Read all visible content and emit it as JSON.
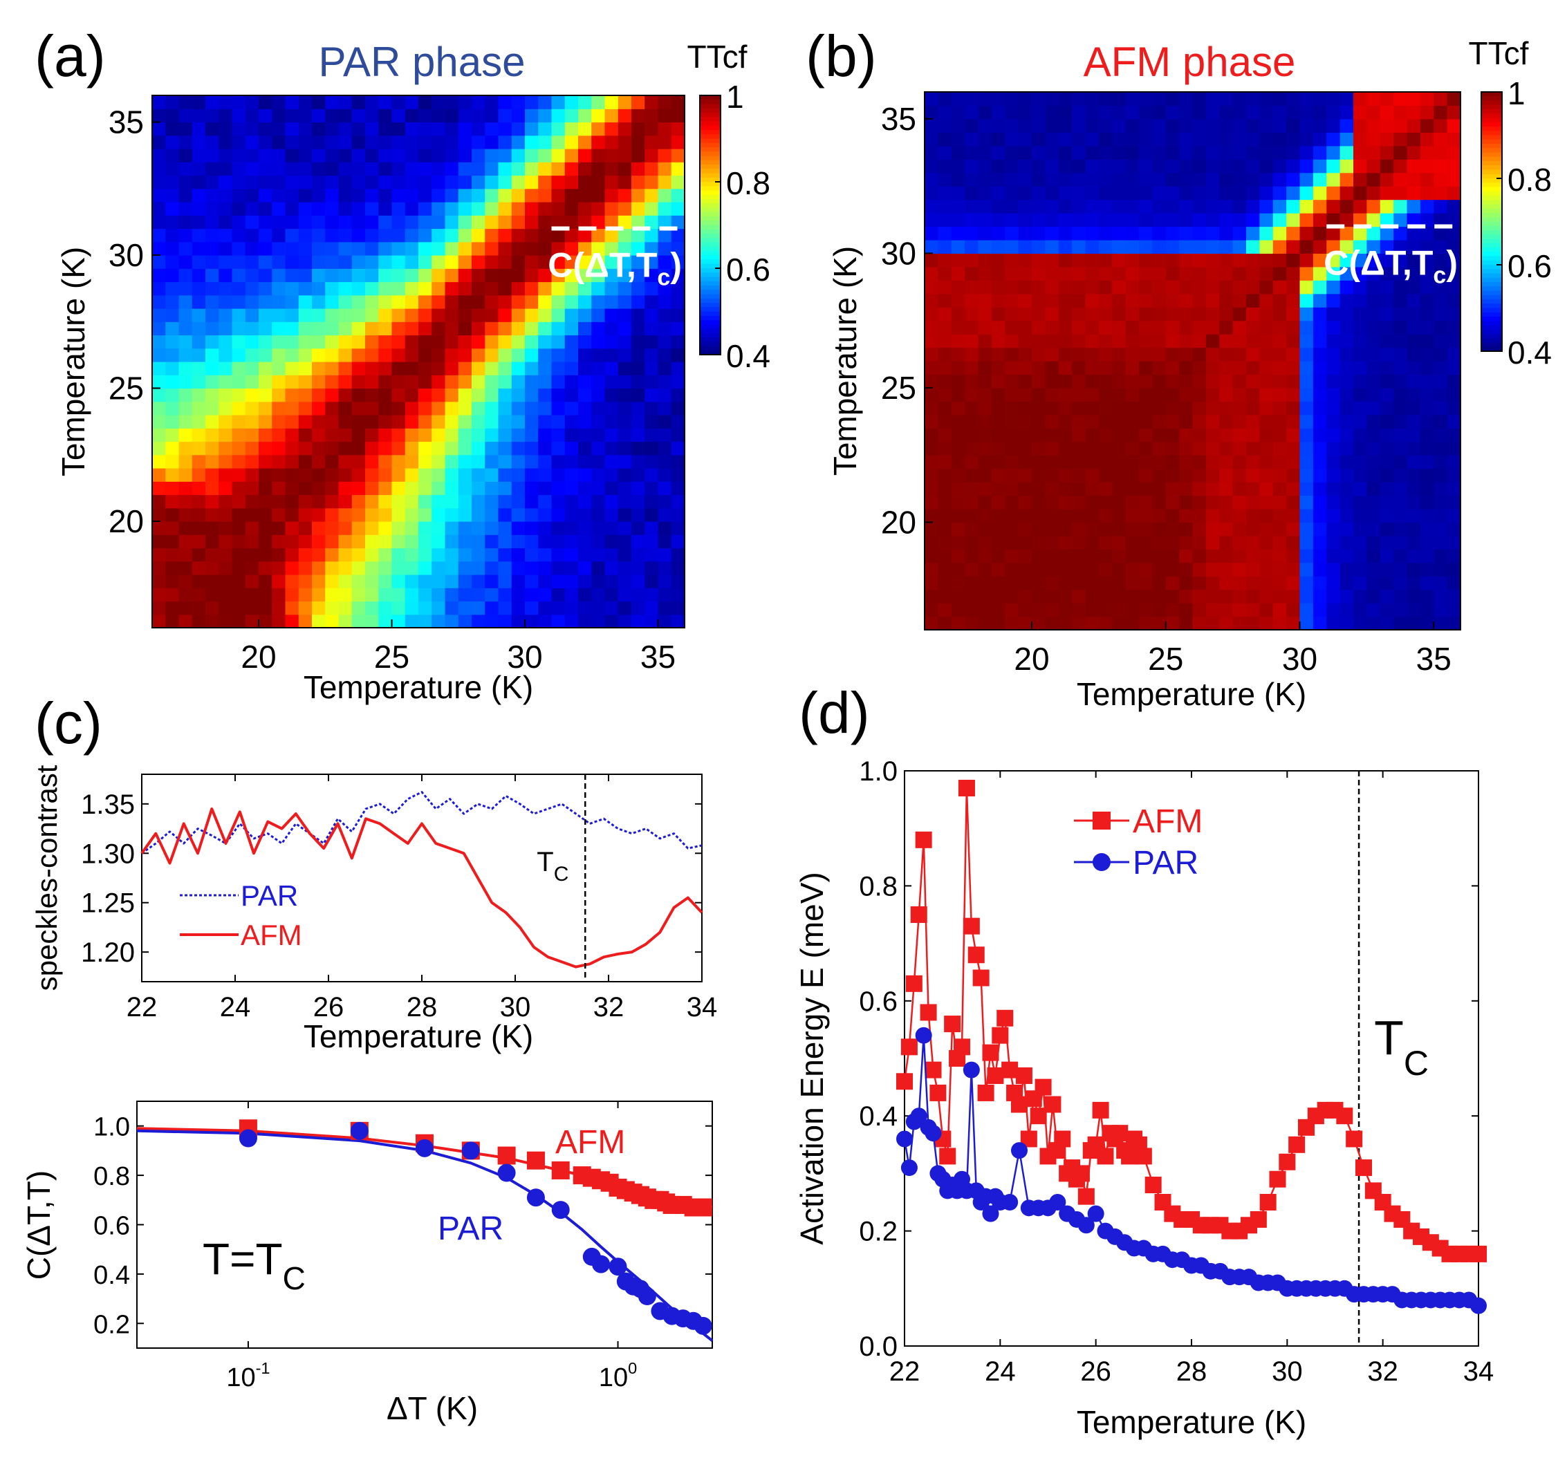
{
  "figure": {
    "colors": {
      "axis": "#000000",
      "afm": "#ee1c1c",
      "par": "#1c1cd6",
      "par_title": "#2e4c9b",
      "afm_title": "#ee1c1c",
      "white": "#ffffff"
    }
  },
  "chart_data": [
    {
      "id": "panel_a",
      "type": "heatmap",
      "panel_label": "(a)",
      "title": "PAR phase",
      "xlabel": "Temperature (K)",
      "ylabel": "Temperature (K)",
      "xlim": [
        16,
        36
      ],
      "ylim": [
        16,
        36
      ],
      "xticks": [
        20,
        25,
        30,
        35
      ],
      "yticks": [
        20,
        25,
        30,
        35
      ],
      "colorbar": {
        "title": "TTcf",
        "range": [
          0.4,
          1
        ],
        "ticks": [
          "0.4",
          "0.6",
          "0.8",
          "1"
        ]
      },
      "annotation": {
        "label": "C(ΔT,T",
        "subscript": "c",
        "closing": ")",
        "line_x": [
          31,
          36
        ],
        "line_y": 31
      },
      "model": {
        "diag_width": 2.6,
        "low_t": 21,
        "low_t_spread": 4.5,
        "floor": 0.43,
        "noise": 0.05
      }
    },
    {
      "id": "panel_b",
      "type": "heatmap",
      "panel_label": "(b)",
      "title": "AFM phase",
      "xlabel": "Temperature (K)",
      "ylabel": "Temperature (K)",
      "xlim": [
        16,
        36
      ],
      "ylim": [
        16,
        36
      ],
      "xticks": [
        20,
        25,
        30,
        35
      ],
      "yticks": [
        20,
        25,
        30,
        35
      ],
      "colorbar": {
        "title": "TTcf",
        "range": [
          0.4,
          1
        ],
        "ticks": [
          "0.4",
          "0.6",
          "0.8",
          "1"
        ]
      },
      "annotation": {
        "label": "C(ΔT,T",
        "subscript": "c",
        "closing": ")",
        "line_x": [
          31,
          36
        ],
        "line_y": 31
      },
      "model": {
        "tc": 31.5,
        "floor": 0.42,
        "noise": 0.02
      }
    },
    {
      "id": "panel_c_top",
      "type": "line",
      "panel_label": "(c)",
      "xlabel": "Temperature (K)",
      "ylabel": "speckles-contrast",
      "xlim": [
        22,
        34
      ],
      "ylim": [
        1.17,
        1.38
      ],
      "xticks": [
        22,
        24,
        26,
        28,
        30,
        32,
        34
      ],
      "yticks": [
        1.2,
        1.25,
        1.3,
        1.35
      ],
      "ytick_labels": [
        "1.20",
        "1.25",
        "1.30",
        "1.35"
      ],
      "vline": {
        "x": 31.5,
        "label": "T",
        "subscript": "C"
      },
      "legend": [
        "PAR",
        "AFM"
      ],
      "series": [
        {
          "name": "PAR",
          "style": "dotted",
          "x": [
            22.0,
            22.3,
            22.6,
            22.9,
            23.2,
            23.5,
            23.8,
            24.1,
            24.4,
            24.7,
            25.0,
            25.3,
            25.6,
            25.9,
            26.2,
            26.5,
            26.8,
            27.1,
            27.4,
            27.7,
            28.0,
            28.3,
            28.6,
            28.9,
            29.2,
            29.5,
            29.8,
            30.1,
            30.4,
            30.7,
            31.0,
            31.3,
            31.6,
            31.9,
            32.2,
            32.5,
            32.8,
            33.1,
            33.4,
            33.7,
            34.0
          ],
          "y": [
            1.3,
            1.31,
            1.322,
            1.31,
            1.325,
            1.318,
            1.31,
            1.33,
            1.315,
            1.32,
            1.31,
            1.33,
            1.32,
            1.31,
            1.335,
            1.322,
            1.345,
            1.35,
            1.34,
            1.355,
            1.362,
            1.345,
            1.355,
            1.34,
            1.35,
            1.345,
            1.358,
            1.35,
            1.34,
            1.345,
            1.35,
            1.34,
            1.33,
            1.335,
            1.325,
            1.32,
            1.325,
            1.315,
            1.32,
            1.305,
            1.308
          ]
        },
        {
          "name": "AFM",
          "style": "solid",
          "x": [
            22.0,
            22.3,
            22.6,
            22.9,
            23.2,
            23.5,
            23.8,
            24.1,
            24.4,
            24.7,
            25.0,
            25.3,
            25.6,
            25.9,
            26.2,
            26.5,
            26.8,
            27.1,
            27.4,
            27.7,
            28.0,
            28.3,
            28.6,
            28.9,
            29.2,
            29.5,
            29.8,
            30.1,
            30.4,
            30.7,
            31.0,
            31.3,
            31.6,
            31.9,
            32.2,
            32.5,
            32.8,
            33.1,
            33.4,
            33.7,
            34.0
          ],
          "y": [
            1.3,
            1.32,
            1.29,
            1.33,
            1.3,
            1.345,
            1.31,
            1.342,
            1.3,
            1.332,
            1.325,
            1.34,
            1.32,
            1.305,
            1.33,
            1.295,
            1.335,
            1.33,
            1.32,
            1.31,
            1.33,
            1.31,
            1.305,
            1.3,
            1.275,
            1.25,
            1.24,
            1.225,
            1.205,
            1.195,
            1.19,
            1.185,
            1.188,
            1.195,
            1.198,
            1.2,
            1.208,
            1.22,
            1.245,
            1.255,
            1.24
          ]
        }
      ]
    },
    {
      "id": "panel_c_bottom",
      "type": "scatter",
      "xscale": "log",
      "xlabel": "ΔT (K)",
      "ylabel": "C(ΔT,T)",
      "xlim": [
        0.05,
        1.8
      ],
      "ylim": [
        0.1,
        1.1
      ],
      "xticks": [
        0.1,
        1.0
      ],
      "xtick_labels": [
        "10",
        "10"
      ],
      "xtick_exponents": [
        "-1",
        "0"
      ],
      "yticks": [
        0.2,
        0.4,
        0.6,
        0.8,
        1.0
      ],
      "ytick_labels": [
        "0.2",
        "0.4",
        "0.6",
        "0.8",
        "1.0"
      ],
      "annotation": {
        "label": "T=T",
        "subscript": "C"
      },
      "series": [
        {
          "name": "AFM",
          "marker": "square",
          "x": [
            0.1,
            0.2,
            0.3,
            0.4,
            0.5,
            0.6,
            0.7,
            0.8,
            0.85,
            0.9,
            0.95,
            1.0,
            1.05,
            1.1,
            1.15,
            1.2,
            1.25,
            1.3,
            1.35,
            1.4,
            1.5,
            1.6,
            1.7
          ],
          "y": [
            0.99,
            0.98,
            0.93,
            0.9,
            0.88,
            0.86,
            0.82,
            0.8,
            0.79,
            0.78,
            0.77,
            0.75,
            0.74,
            0.73,
            0.72,
            0.71,
            0.7,
            0.7,
            0.69,
            0.68,
            0.68,
            0.67,
            0.67
          ],
          "fit_x": [
            0.05,
            0.1,
            0.2,
            0.3,
            0.5,
            0.8,
            1.2,
            1.8
          ],
          "fit_y": [
            0.99,
            0.98,
            0.95,
            0.92,
            0.87,
            0.8,
            0.72,
            0.67
          ]
        },
        {
          "name": "PAR",
          "marker": "circle",
          "x": [
            0.1,
            0.2,
            0.3,
            0.4,
            0.5,
            0.6,
            0.7,
            0.85,
            0.9,
            1.0,
            1.05,
            1.1,
            1.15,
            1.2,
            1.3,
            1.4,
            1.5,
            1.6,
            1.7
          ],
          "y": [
            0.95,
            0.98,
            0.91,
            0.9,
            0.81,
            0.71,
            0.66,
            0.47,
            0.44,
            0.43,
            0.37,
            0.35,
            0.34,
            0.31,
            0.25,
            0.23,
            0.22,
            0.21,
            0.19
          ],
          "fit_x": [
            0.05,
            0.1,
            0.2,
            0.3,
            0.4,
            0.5,
            0.6,
            0.7,
            0.8,
            0.9,
            1.0,
            1.2,
            1.4,
            1.6,
            1.8
          ],
          "fit_y": [
            0.98,
            0.97,
            0.94,
            0.9,
            0.85,
            0.79,
            0.72,
            0.65,
            0.58,
            0.51,
            0.45,
            0.35,
            0.26,
            0.19,
            0.13
          ]
        }
      ],
      "labels": {
        "afm": "AFM",
        "par": "PAR"
      }
    },
    {
      "id": "panel_d",
      "type": "scatter",
      "panel_label": "(d)",
      "xlabel": "Temperature (K)",
      "ylabel": "Activation Energy E (meV)",
      "xlim": [
        22,
        34
      ],
      "ylim": [
        0,
        1.0
      ],
      "xticks": [
        22,
        24,
        26,
        28,
        30,
        32,
        34
      ],
      "yticks": [
        0,
        0.2,
        0.4,
        0.6,
        0.8,
        1.0
      ],
      "ytick_labels": [
        "0.0",
        "0.2",
        "0.4",
        "0.6",
        "0.8",
        "1.0"
      ],
      "vline": {
        "x": 31.5,
        "label": "T",
        "subscript": "C"
      },
      "legend": [
        "AFM",
        "PAR"
      ],
      "series": [
        {
          "name": "AFM",
          "marker": "square",
          "x": [
            22.0,
            22.1,
            22.2,
            22.3,
            22.4,
            22.5,
            22.6,
            22.7,
            22.8,
            22.9,
            23.0,
            23.1,
            23.2,
            23.3,
            23.4,
            23.5,
            23.6,
            23.7,
            23.8,
            23.9,
            24.0,
            24.1,
            24.2,
            24.3,
            24.4,
            24.5,
            24.6,
            24.7,
            24.8,
            24.9,
            25.0,
            25.1,
            25.2,
            25.3,
            25.4,
            25.5,
            25.6,
            25.7,
            25.8,
            25.9,
            26.0,
            26.1,
            26.2,
            26.3,
            26.4,
            26.5,
            26.6,
            26.7,
            26.8,
            26.9,
            27.0,
            27.2,
            27.4,
            27.6,
            27.8,
            28.0,
            28.2,
            28.4,
            28.6,
            28.8,
            29.0,
            29.2,
            29.4,
            29.6,
            29.8,
            30.0,
            30.2,
            30.4,
            30.6,
            30.8,
            31.0,
            31.2,
            31.4,
            31.6,
            31.8,
            32.0,
            32.2,
            32.4,
            32.6,
            32.8,
            33.0,
            33.2,
            33.4,
            33.6,
            33.8,
            34.0
          ],
          "y": [
            0.46,
            0.52,
            0.63,
            0.75,
            0.88,
            0.58,
            0.48,
            0.44,
            0.36,
            0.33,
            0.56,
            0.5,
            0.52,
            0.97,
            0.73,
            0.68,
            0.64,
            0.44,
            0.51,
            0.47,
            0.54,
            0.57,
            0.48,
            0.44,
            0.42,
            0.47,
            0.36,
            0.43,
            0.4,
            0.45,
            0.33,
            0.42,
            0.34,
            0.36,
            0.3,
            0.31,
            0.29,
            0.3,
            0.26,
            0.34,
            0.35,
            0.41,
            0.33,
            0.37,
            0.36,
            0.37,
            0.34,
            0.33,
            0.36,
            0.35,
            0.33,
            0.28,
            0.25,
            0.23,
            0.22,
            0.22,
            0.21,
            0.21,
            0.21,
            0.2,
            0.2,
            0.21,
            0.22,
            0.25,
            0.29,
            0.32,
            0.35,
            0.38,
            0.4,
            0.41,
            0.41,
            0.4,
            0.36,
            0.31,
            0.27,
            0.25,
            0.23,
            0.22,
            0.2,
            0.19,
            0.18,
            0.17,
            0.16,
            0.16,
            0.16,
            0.16
          ]
        },
        {
          "name": "PAR",
          "marker": "circle",
          "x": [
            22.0,
            22.1,
            22.2,
            22.3,
            22.4,
            22.5,
            22.6,
            22.7,
            22.8,
            22.9,
            23.0,
            23.1,
            23.2,
            23.3,
            23.4,
            23.5,
            23.6,
            23.7,
            23.8,
            23.9,
            24.0,
            24.2,
            24.4,
            24.6,
            24.8,
            25.0,
            25.2,
            25.4,
            25.6,
            25.8,
            26.0,
            26.2,
            26.4,
            26.6,
            26.8,
            27.0,
            27.2,
            27.4,
            27.6,
            27.8,
            28.0,
            28.2,
            28.4,
            28.6,
            28.8,
            29.0,
            29.2,
            29.4,
            29.6,
            29.8,
            30.0,
            30.2,
            30.4,
            30.6,
            30.8,
            31.0,
            31.2,
            31.4,
            31.6,
            31.8,
            32.0,
            32.2,
            32.4,
            32.6,
            32.8,
            33.0,
            33.2,
            33.4,
            33.6,
            33.8,
            34.0
          ],
          "y": [
            0.36,
            0.31,
            0.39,
            0.4,
            0.54,
            0.38,
            0.37,
            0.3,
            0.29,
            0.27,
            0.28,
            0.27,
            0.29,
            0.27,
            0.48,
            0.27,
            0.25,
            0.26,
            0.23,
            0.26,
            0.25,
            0.25,
            0.34,
            0.24,
            0.24,
            0.24,
            0.25,
            0.23,
            0.22,
            0.21,
            0.23,
            0.2,
            0.19,
            0.18,
            0.17,
            0.17,
            0.16,
            0.16,
            0.15,
            0.15,
            0.14,
            0.14,
            0.13,
            0.13,
            0.12,
            0.12,
            0.12,
            0.11,
            0.11,
            0.11,
            0.1,
            0.1,
            0.1,
            0.1,
            0.1,
            0.1,
            0.1,
            0.09,
            0.09,
            0.09,
            0.09,
            0.09,
            0.08,
            0.08,
            0.08,
            0.08,
            0.08,
            0.08,
            0.08,
            0.08,
            0.07
          ]
        }
      ]
    }
  ]
}
